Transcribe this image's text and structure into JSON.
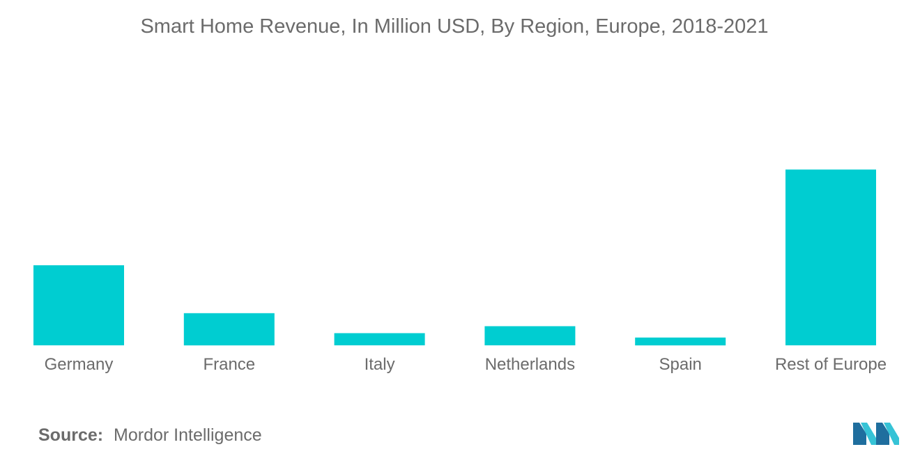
{
  "colors": {
    "bar": "#00cdd1",
    "text": "#6b6b6b",
    "logo_dark": "#1f6e9e",
    "logo_light": "#36c3d6"
  },
  "chart_data": {
    "type": "bar",
    "title": "Smart Home Revenue, In Million USD, By Region, Europe, 2018-2021",
    "categories": [
      "Germany",
      "France",
      "Italy",
      "Netherlands",
      "Spain",
      "Rest of Europe"
    ],
    "values": [
      46,
      18.5,
      7,
      11,
      4.5,
      101
    ],
    "ylim": [
      0,
      160
    ],
    "grid": false,
    "legend": false
  },
  "source": {
    "label": "Source:",
    "text": "Mordor Intelligence"
  },
  "logo": {
    "icon": "mordor-intelligence-logo"
  }
}
